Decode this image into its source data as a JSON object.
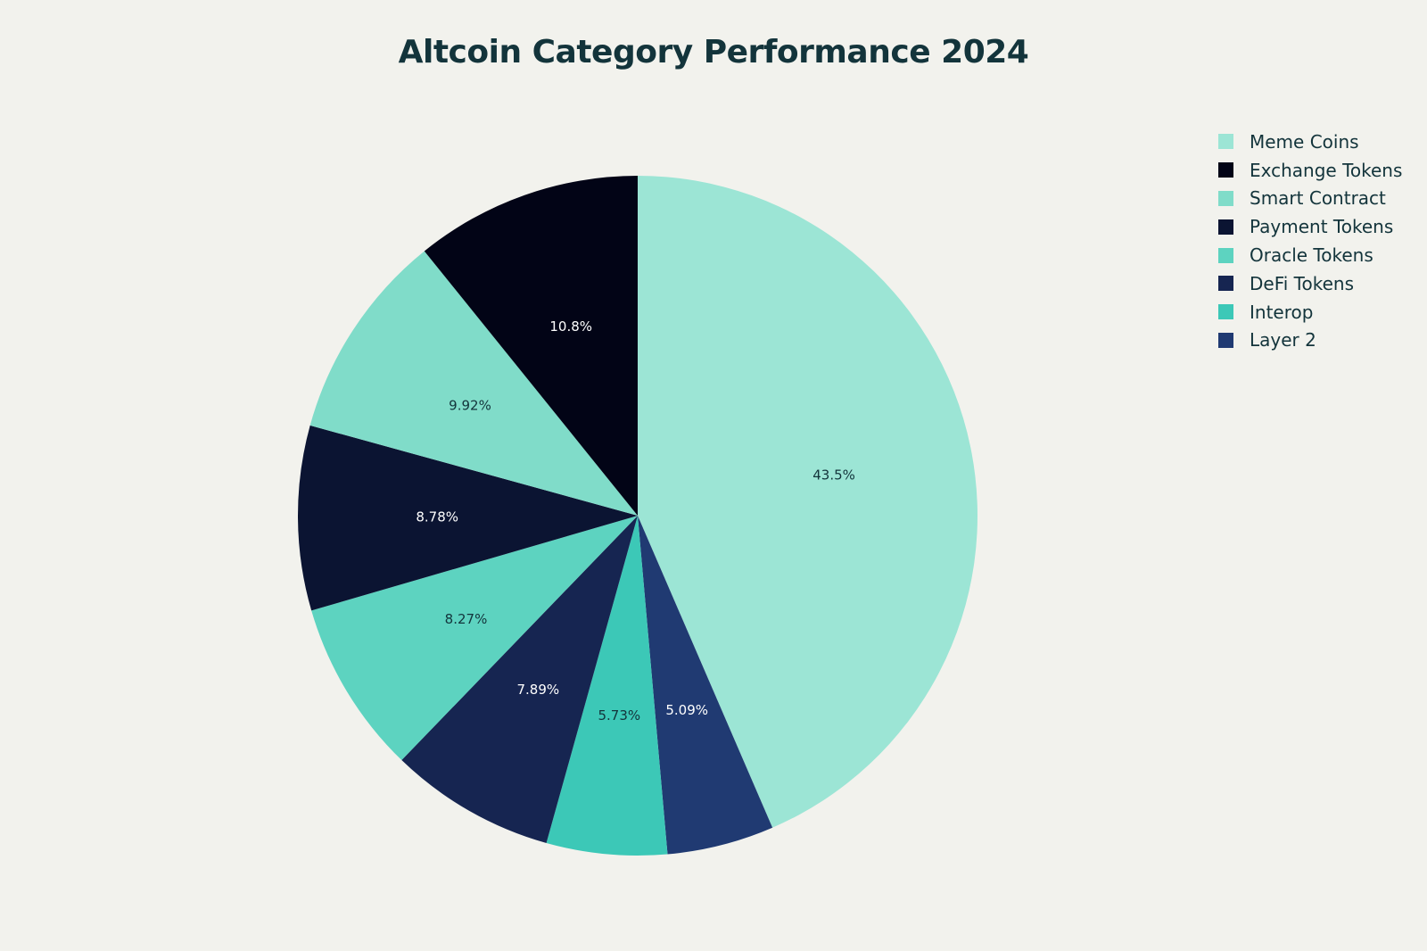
{
  "chart_data": {
    "type": "pie",
    "title": "Altcoin Category Performance 2024",
    "slices": [
      {
        "label": "Meme Coins",
        "value": 43.5,
        "display": "43.5%",
        "color": "#9ce5d5",
        "text_color": "#13343b"
      },
      {
        "label": "Layer 2",
        "value": 5.09,
        "display": "5.09%",
        "color": "#203a72",
        "text_color": "#ffffff"
      },
      {
        "label": "Interop",
        "value": 5.73,
        "display": "5.73%",
        "color": "#3cc8b7",
        "text_color": "#13343b"
      },
      {
        "label": "DeFi Tokens",
        "value": 7.89,
        "display": "7.89%",
        "color": "#162551",
        "text_color": "#ffffff"
      },
      {
        "label": "Oracle Tokens",
        "value": 8.27,
        "display": "8.27%",
        "color": "#5dd3c0",
        "text_color": "#13343b"
      },
      {
        "label": "Payment Tokens",
        "value": 8.78,
        "display": "8.78%",
        "color": "#0b1432",
        "text_color": "#ffffff"
      },
      {
        "label": "Smart Contract",
        "value": 9.92,
        "display": "9.92%",
        "color": "#80dcc9",
        "text_color": "#13343b"
      },
      {
        "label": "Exchange Tokens",
        "value": 10.8,
        "display": "10.8%",
        "color": "#020416",
        "text_color": "#ffffff"
      }
    ],
    "legend": [
      {
        "label": "Meme Coins",
        "color": "#9ce5d5"
      },
      {
        "label": "Exchange Tokens",
        "color": "#020416"
      },
      {
        "label": "Smart Contract",
        "color": "#80dcc9"
      },
      {
        "label": "Payment Tokens",
        "color": "#0b1432"
      },
      {
        "label": "Oracle Tokens",
        "color": "#5dd3c0"
      },
      {
        "label": "DeFi Tokens",
        "color": "#162551"
      },
      {
        "label": "Interop",
        "color": "#3cc8b7"
      },
      {
        "label": "Layer 2",
        "color": "#203a72"
      }
    ],
    "direction": "clockwise",
    "start": "top",
    "legend_position": "top-right"
  }
}
